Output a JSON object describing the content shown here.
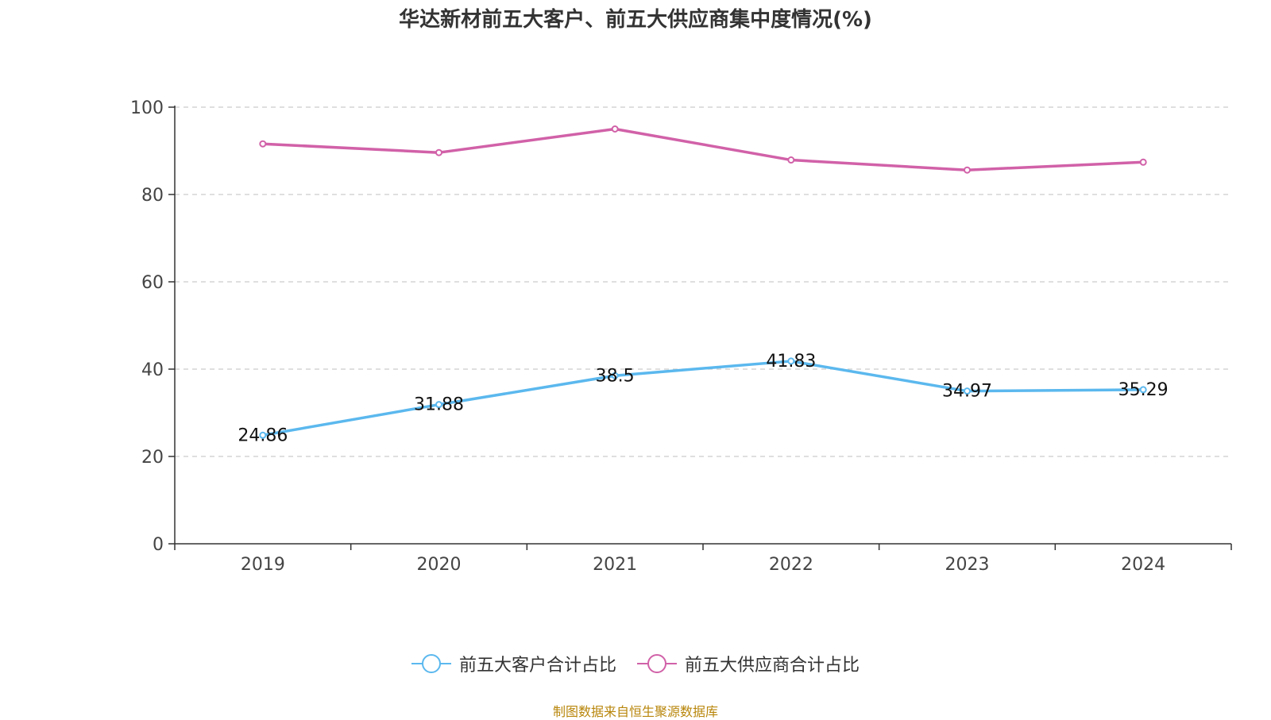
{
  "chart_data": {
    "type": "line",
    "title": "华达新材前五大客户、前五大供应商集中度情况(%)",
    "categories": [
      "2019",
      "2020",
      "2021",
      "2022",
      "2023",
      "2024"
    ],
    "ylim": [
      0,
      100
    ],
    "yticks": [
      "0",
      "20",
      "40",
      "60",
      "80",
      "100"
    ],
    "grid": true,
    "legend_position": "bottom",
    "series": [
      {
        "name": "前五大客户合计占比",
        "color": "#5bb8ee",
        "values": [
          24.86,
          31.88,
          38.5,
          41.83,
          34.97,
          35.29
        ],
        "labels": [
          "24.86",
          "31.88",
          "38.5",
          "41.83",
          "34.97",
          "35.29"
        ]
      },
      {
        "name": "前五大供应商合计占比",
        "color": "#d161a8",
        "values": [
          91.6,
          89.6,
          95.0,
          87.9,
          85.6,
          87.4
        ]
      }
    ]
  },
  "source": "制图数据来自恒生聚源数据库"
}
